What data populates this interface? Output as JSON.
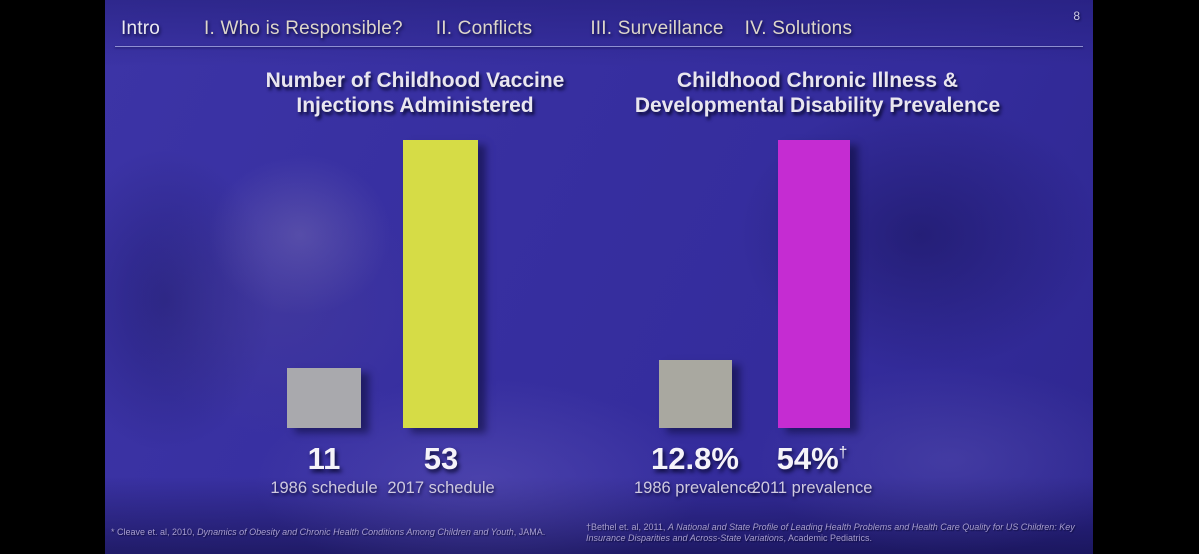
{
  "page": {
    "number": "8"
  },
  "colors": {
    "letterbox": "#000000",
    "slide_background": "#38309e",
    "bar_gray_left": "#a9a9ad",
    "bar_yellow": "#d6dc46",
    "bar_gray_right": "#a9a8a0",
    "bar_magenta": "#c52cd2",
    "nav_text": "#ddd6cb",
    "nav_rule": "#adb2e4"
  },
  "nav": {
    "items": [
      {
        "label": "Intro"
      },
      {
        "label": "I. Who is Responsible?"
      },
      {
        "label": "II. Conflicts"
      },
      {
        "label": "III. Surveillance"
      },
      {
        "label": "IV. Solutions"
      }
    ]
  },
  "chart_data": [
    {
      "type": "bar",
      "title": "Number of Childhood Vaccine Injections Administered",
      "title_lines": [
        "Number of Childhood Vaccine",
        "Injections Administered"
      ],
      "categories": [
        "1986 schedule",
        "2017 schedule"
      ],
      "values": [
        11,
        53
      ],
      "value_labels": [
        "11",
        "53"
      ],
      "value_markers": [
        "",
        ""
      ],
      "bar_colors": [
        "#a9a9ad",
        "#d6dc46"
      ],
      "xlabel": "",
      "ylabel": "",
      "ylim": [
        0,
        53
      ],
      "grid": false,
      "legend": "none"
    },
    {
      "type": "bar",
      "title": "Childhood Chronic Illness & Developmental Disability Prevalence",
      "title_lines": [
        "Childhood Chronic Illness &",
        "Developmental Disability Prevalence"
      ],
      "categories": [
        "1986 prevalence",
        "2011 prevalence"
      ],
      "values": [
        12.8,
        54
      ],
      "value_labels": [
        "12.8%",
        "54%"
      ],
      "value_markers": [
        "",
        "†"
      ],
      "bar_colors": [
        "#a9a8a0",
        "#c52cd2"
      ],
      "xlabel": "",
      "ylabel": "",
      "ylim": [
        0,
        54
      ],
      "grid": false,
      "legend": "none"
    }
  ],
  "footnotes": {
    "left": {
      "prefix": "* Cleave et. al, 2010, ",
      "title": "Dynamics of Obesity and Chronic Health Conditions Among Children and Youth",
      "suffix": ", JAMA."
    },
    "right": {
      "prefix": "†Bethel et. al, 2011, ",
      "title": "A National and State Profile of Leading Health Problems and Health Care Quality for US Children: Key Insurance Disparities and Across-State Variations",
      "suffix": ", Academic Pediatrics."
    }
  }
}
